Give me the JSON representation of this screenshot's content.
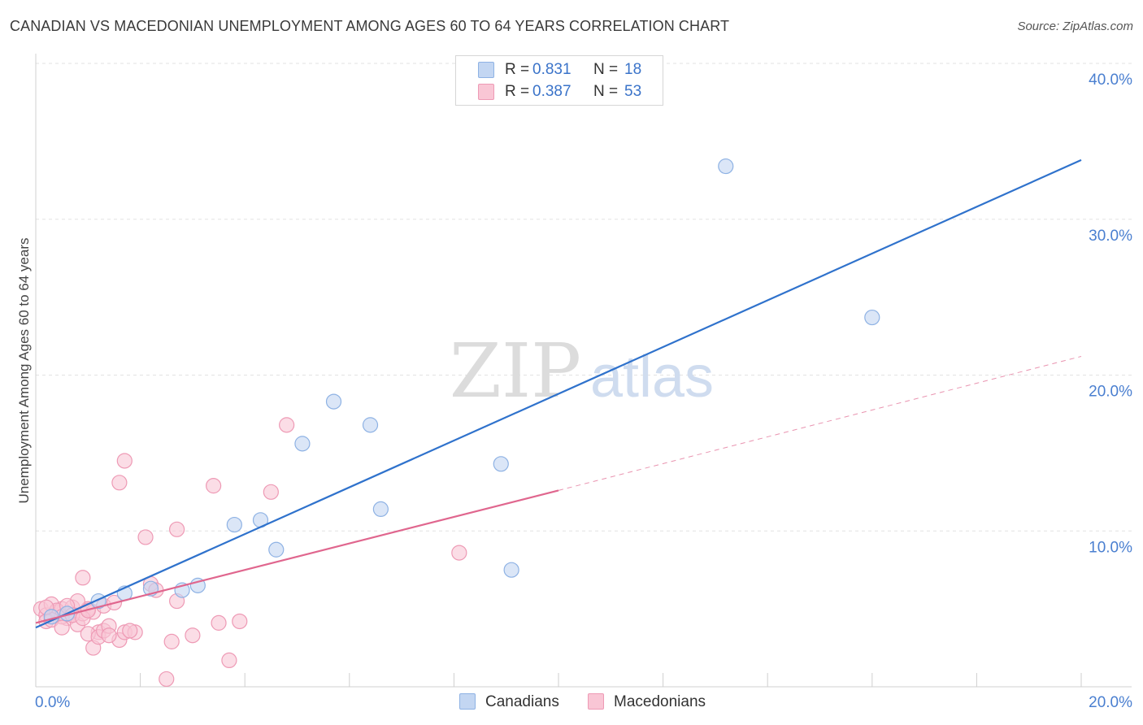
{
  "title": "CANADIAN VS MACEDONIAN UNEMPLOYMENT AMONG AGES 60 TO 64 YEARS CORRELATION CHART",
  "source": "Source: ZipAtlas.com",
  "watermark": {
    "zip": "ZIP",
    "atlas": "atlas"
  },
  "colors": {
    "blue_fill": "#c3d6f2",
    "blue_stroke": "#8eb2e4",
    "blue_line": "#2f72cc",
    "pink_fill": "#f9c6d5",
    "pink_stroke": "#ee9ab5",
    "pink_line": "#e0668e",
    "tick_text": "#4a7fd0",
    "grid": "#e2e2e2",
    "watermark": "#dcdcdc",
    "watermark_atlas": "#cfdcef"
  },
  "legend_top": [
    {
      "r_label": "R =",
      "r_value": "0.831",
      "n_label": "N =",
      "n_value": "18",
      "series": "blue"
    },
    {
      "r_label": "R =",
      "r_value": "0.387",
      "n_label": "N =",
      "n_value": "53",
      "series": "pink"
    }
  ],
  "legend_bottom": [
    "Canadians",
    "Macedonians"
  ],
  "chart_data": {
    "type": "scatter",
    "title": "CANADIAN VS MACEDONIAN UNEMPLOYMENT AMONG AGES 60 TO 64 YEARS CORRELATION CHART",
    "xlabel": "",
    "ylabel": "Unemployment Among Ages 60 to 64 years",
    "xlim": [
      0,
      20
    ],
    "ylim": [
      0,
      40
    ],
    "x_tick_labels": [
      "0.0%",
      "20.0%"
    ],
    "x_tick_values": [
      0,
      20
    ],
    "y_tick_labels": [
      "10.0%",
      "20.0%",
      "30.0%",
      "40.0%"
    ],
    "y_tick_values": [
      10,
      20,
      30,
      40
    ],
    "legend": [
      "Canadians",
      "Macedonians"
    ],
    "series": [
      {
        "name": "Canadians",
        "points": [
          [
            0.3,
            4.5
          ],
          [
            1.2,
            5.5
          ],
          [
            1.7,
            6.0
          ],
          [
            2.2,
            6.3
          ],
          [
            2.8,
            6.2
          ],
          [
            3.1,
            6.5
          ],
          [
            3.8,
            10.4
          ],
          [
            4.3,
            10.7
          ],
          [
            4.6,
            8.8
          ],
          [
            5.1,
            15.6
          ],
          [
            5.7,
            18.3
          ],
          [
            6.4,
            16.8
          ],
          [
            6.6,
            11.4
          ],
          [
            8.9,
            14.3
          ],
          [
            9.1,
            7.5
          ],
          [
            13.2,
            33.4
          ],
          [
            16.0,
            23.7
          ],
          [
            0.6,
            4.7
          ]
        ],
        "trend": {
          "x0": 0.0,
          "y0": 3.8,
          "x1": 20.0,
          "y1": 33.8,
          "style": "solid"
        }
      },
      {
        "name": "Macedonians",
        "points": [
          [
            0.1,
            5.0
          ],
          [
            0.2,
            4.6
          ],
          [
            0.3,
            5.3
          ],
          [
            0.4,
            4.8
          ],
          [
            0.5,
            5.0
          ],
          [
            0.6,
            4.4
          ],
          [
            0.7,
            5.1
          ],
          [
            0.8,
            4.0
          ],
          [
            0.9,
            4.7
          ],
          [
            1.0,
            5.0
          ],
          [
            1.1,
            4.8
          ],
          [
            1.2,
            3.5
          ],
          [
            0.8,
            5.5
          ],
          [
            0.9,
            7.0
          ],
          [
            1.0,
            3.4
          ],
          [
            1.1,
            2.5
          ],
          [
            1.2,
            3.2
          ],
          [
            1.3,
            3.6
          ],
          [
            1.3,
            5.2
          ],
          [
            1.4,
            3.9
          ],
          [
            1.5,
            5.4
          ],
          [
            1.6,
            3.0
          ],
          [
            1.6,
            13.1
          ],
          [
            1.7,
            3.5
          ],
          [
            1.7,
            14.5
          ],
          [
            1.9,
            3.5
          ],
          [
            2.1,
            9.6
          ],
          [
            2.2,
            6.6
          ],
          [
            2.5,
            0.5
          ],
          [
            2.6,
            2.9
          ],
          [
            2.7,
            10.1
          ],
          [
            2.7,
            5.5
          ],
          [
            3.0,
            3.3
          ],
          [
            3.4,
            12.9
          ],
          [
            3.5,
            4.1
          ],
          [
            3.7,
            1.7
          ],
          [
            3.9,
            4.2
          ],
          [
            4.5,
            12.5
          ],
          [
            4.8,
            16.8
          ],
          [
            8.1,
            8.6
          ],
          [
            0.2,
            4.2
          ],
          [
            0.4,
            4.9
          ],
          [
            0.5,
            4.5
          ],
          [
            0.6,
            5.2
          ],
          [
            0.7,
            4.6
          ],
          [
            0.3,
            4.3
          ],
          [
            0.9,
            4.4
          ],
          [
            1.0,
            4.9
          ],
          [
            1.4,
            3.3
          ],
          [
            1.8,
            3.6
          ],
          [
            2.3,
            6.2
          ],
          [
            0.2,
            5.1
          ],
          [
            0.5,
            3.8
          ]
        ],
        "trend": {
          "x0": 0.0,
          "y0": 4.1,
          "x1": 10.0,
          "y1": 12.6,
          "style": "solid"
        },
        "trend_extension": {
          "x0": 10.0,
          "y0": 12.6,
          "x1": 20.0,
          "y1": 21.2,
          "style": "dashed"
        }
      }
    ]
  }
}
